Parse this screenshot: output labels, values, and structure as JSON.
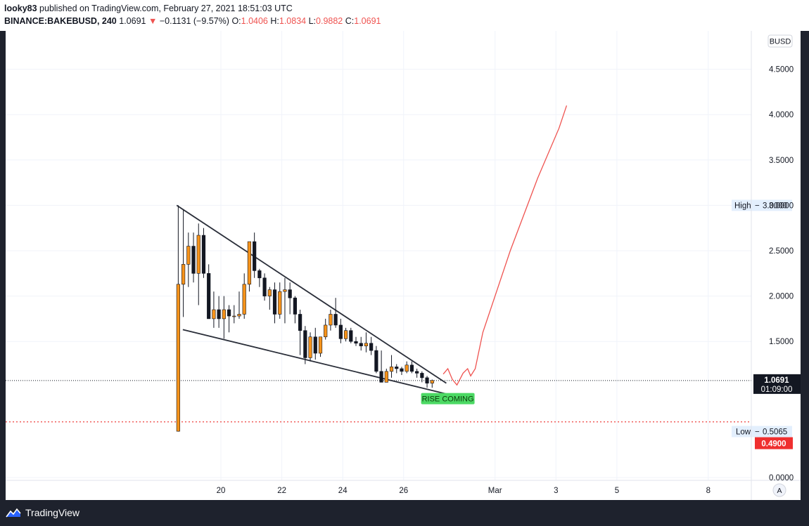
{
  "header": {
    "author": "looky83",
    "published_text": "published on TradingView.com, February 27, 2021 18:51:03 UTC",
    "symbol": "BINANCE:BAKEBUSD, 240",
    "last": "1.0691",
    "arrow": "▼",
    "change": "−0.1131 (−9.57%)",
    "o_label": "O:",
    "o_value": "1.0406",
    "h_label": "H:",
    "h_value": "1.0834",
    "l_label": "L:",
    "l_value": "0.9882",
    "c_label": "C:",
    "c_value": "1.0691"
  },
  "footer": {
    "brand": "TradingView"
  },
  "colors": {
    "up": "#f7931a",
    "down": "#131722",
    "projection": "#ef5350",
    "trendline": "#2a2e39",
    "label_bg": "#4cd964"
  },
  "chart_data": {
    "type": "candlestick",
    "currency": "BUSD",
    "y_ticks": [
      "4.5000",
      "4.0000",
      "3.5000",
      "3.0000",
      "2.5000",
      "2.0000",
      "1.5000",
      "0.0000"
    ],
    "ylim": [
      0,
      4.6
    ],
    "x_ticks": [
      {
        "label": "20",
        "day": 20
      },
      {
        "label": "22",
        "day": 22
      },
      {
        "label": "24",
        "day": 24
      },
      {
        "label": "26",
        "day": 26
      },
      {
        "label": "Mar",
        "day": 29
      },
      {
        "label": "3",
        "day": 31
      },
      {
        "label": "5",
        "day": 33
      },
      {
        "label": "8",
        "day": 36
      }
    ],
    "candles": [
      {
        "o": 0.51,
        "h": 3.0,
        "l": 0.506,
        "c": 2.13
      },
      {
        "o": 2.13,
        "h": 2.95,
        "l": 1.77,
        "c": 2.35
      },
      {
        "o": 2.35,
        "h": 2.7,
        "l": 2.1,
        "c": 2.55
      },
      {
        "o": 2.55,
        "h": 2.7,
        "l": 2.15,
        "c": 2.25
      },
      {
        "o": 2.25,
        "h": 2.8,
        "l": 1.9,
        "c": 2.67
      },
      {
        "o": 2.67,
        "h": 2.75,
        "l": 2.2,
        "c": 2.25
      },
      {
        "o": 2.25,
        "h": 2.35,
        "l": 1.75,
        "c": 1.75
      },
      {
        "o": 1.75,
        "h": 2.05,
        "l": 1.65,
        "c": 1.85
      },
      {
        "o": 1.85,
        "h": 2.0,
        "l": 1.65,
        "c": 1.75
      },
      {
        "o": 1.75,
        "h": 2.0,
        "l": 1.53,
        "c": 1.85
      },
      {
        "o": 1.85,
        "h": 1.9,
        "l": 1.6,
        "c": 1.78
      },
      {
        "o": 1.78,
        "h": 1.9,
        "l": 1.7,
        "c": 1.78
      },
      {
        "o": 1.78,
        "h": 2.05,
        "l": 1.75,
        "c": 1.8
      },
      {
        "o": 1.8,
        "h": 2.25,
        "l": 1.75,
        "c": 2.13
      },
      {
        "o": 2.13,
        "h": 2.6,
        "l": 2.05,
        "c": 2.6
      },
      {
        "o": 2.6,
        "h": 2.7,
        "l": 2.2,
        "c": 2.28
      },
      {
        "o": 2.28,
        "h": 2.3,
        "l": 2.1,
        "c": 2.2
      },
      {
        "o": 2.2,
        "h": 2.25,
        "l": 1.95,
        "c": 2.0
      },
      {
        "o": 2.0,
        "h": 2.1,
        "l": 1.85,
        "c": 2.07
      },
      {
        "o": 2.07,
        "h": 2.15,
        "l": 1.7,
        "c": 1.8
      },
      {
        "o": 1.8,
        "h": 2.15,
        "l": 1.75,
        "c": 2.05
      },
      {
        "o": 2.05,
        "h": 2.2,
        "l": 1.7,
        "c": 2.07
      },
      {
        "o": 2.07,
        "h": 2.15,
        "l": 1.8,
        "c": 1.98
      },
      {
        "o": 1.98,
        "h": 2.0,
        "l": 1.7,
        "c": 1.8
      },
      {
        "o": 1.8,
        "h": 1.85,
        "l": 1.35,
        "c": 1.62
      },
      {
        "o": 1.62,
        "h": 1.67,
        "l": 1.25,
        "c": 1.32
      },
      {
        "o": 1.32,
        "h": 1.6,
        "l": 1.28,
        "c": 1.55
      },
      {
        "o": 1.55,
        "h": 1.65,
        "l": 1.3,
        "c": 1.37
      },
      {
        "o": 1.37,
        "h": 1.55,
        "l": 1.33,
        "c": 1.55
      },
      {
        "o": 1.55,
        "h": 1.75,
        "l": 1.52,
        "c": 1.68
      },
      {
        "o": 1.68,
        "h": 1.85,
        "l": 1.62,
        "c": 1.8
      },
      {
        "o": 1.8,
        "h": 1.98,
        "l": 1.65,
        "c": 1.68
      },
      {
        "o": 1.68,
        "h": 1.75,
        "l": 1.48,
        "c": 1.53
      },
      {
        "o": 1.53,
        "h": 1.65,
        "l": 1.5,
        "c": 1.62
      },
      {
        "o": 1.62,
        "h": 1.65,
        "l": 1.48,
        "c": 1.5
      },
      {
        "o": 1.5,
        "h": 1.55,
        "l": 1.45,
        "c": 1.48
      },
      {
        "o": 1.48,
        "h": 1.55,
        "l": 1.4,
        "c": 1.45
      },
      {
        "o": 1.45,
        "h": 1.6,
        "l": 1.38,
        "c": 1.48
      },
      {
        "o": 1.48,
        "h": 1.55,
        "l": 1.35,
        "c": 1.4
      },
      {
        "o": 1.4,
        "h": 1.45,
        "l": 1.15,
        "c": 1.17
      },
      {
        "o": 1.17,
        "h": 1.4,
        "l": 1.05,
        "c": 1.05
      },
      {
        "o": 1.05,
        "h": 1.2,
        "l": 1.05,
        "c": 1.17
      },
      {
        "o": 1.17,
        "h": 1.35,
        "l": 1.1,
        "c": 1.22
      },
      {
        "o": 1.22,
        "h": 1.25,
        "l": 1.15,
        "c": 1.2
      },
      {
        "o": 1.2,
        "h": 1.22,
        "l": 1.13,
        "c": 1.17
      },
      {
        "o": 1.17,
        "h": 1.28,
        "l": 1.15,
        "c": 1.24
      },
      {
        "o": 1.24,
        "h": 1.28,
        "l": 1.15,
        "c": 1.17
      },
      {
        "o": 1.17,
        "h": 1.2,
        "l": 1.1,
        "c": 1.15
      },
      {
        "o": 1.15,
        "h": 1.17,
        "l": 1.05,
        "c": 1.1
      },
      {
        "o": 1.1,
        "h": 1.12,
        "l": 0.99,
        "c": 1.04
      },
      {
        "o": 1.04,
        "h": 1.08,
        "l": 0.99,
        "c": 1.07
      }
    ],
    "candle_start_day": 18.6,
    "candle_step_days": 0.1667,
    "trendline_upper": [
      {
        "day": 18.55,
        "price": 3.0
      },
      {
        "day": 27.4,
        "price": 1.04
      }
    ],
    "trendline_lower": [
      {
        "day": 18.75,
        "price": 1.63
      },
      {
        "day": 27.85,
        "price": 0.885
      }
    ],
    "projection": [
      {
        "day": 27.3,
        "price": 1.14
      },
      {
        "day": 27.45,
        "price": 1.2
      },
      {
        "day": 27.6,
        "price": 1.08
      },
      {
        "day": 27.75,
        "price": 1.02
      },
      {
        "day": 27.95,
        "price": 1.15
      },
      {
        "day": 28.1,
        "price": 1.2
      },
      {
        "day": 28.2,
        "price": 1.12
      },
      {
        "day": 28.35,
        "price": 1.2
      },
      {
        "day": 28.6,
        "price": 1.6
      },
      {
        "day": 29.5,
        "price": 2.5
      },
      {
        "day": 30.4,
        "price": 3.3
      },
      {
        "day": 31.1,
        "price": 3.85
      },
      {
        "day": 31.35,
        "price": 4.1
      }
    ],
    "annotation": "RISE COMING",
    "annotation_pos": {
      "day": 27.45,
      "price": 0.87
    },
    "current_price": {
      "value": "1.0691",
      "numeric": 1.0691,
      "countdown": "01:09:00"
    },
    "high": {
      "label": "High",
      "value": "3.0000",
      "numeric": 3.0
    },
    "low": {
      "label": "Low",
      "value": "0.5065",
      "numeric": 0.5065
    },
    "red_level": {
      "value": "0.4900",
      "numeric": 0.49
    },
    "auto_scale": "A"
  }
}
